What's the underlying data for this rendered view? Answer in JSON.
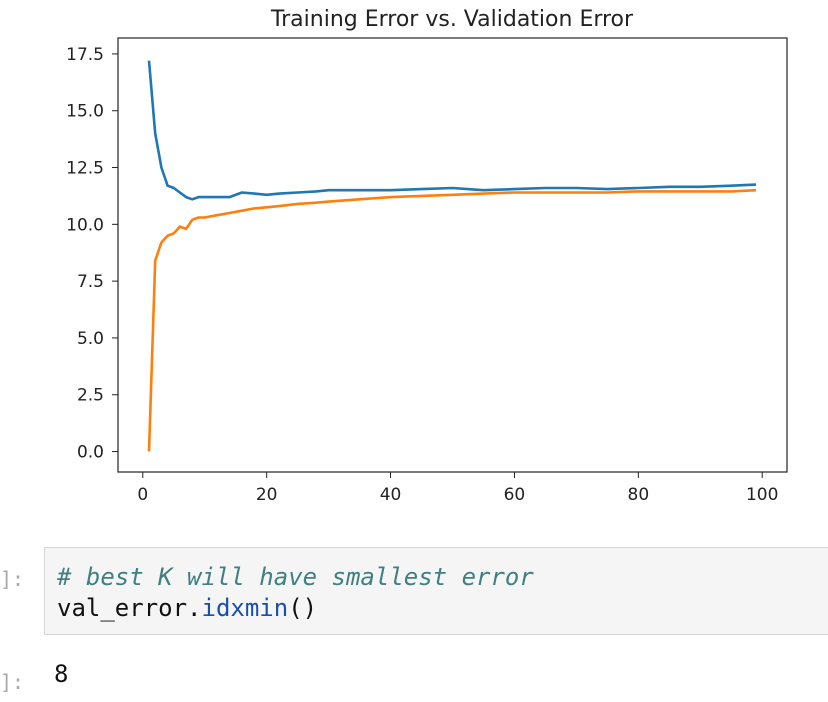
{
  "chart_data": {
    "type": "line",
    "title": "Training Error vs. Validation Error",
    "xlabel": "",
    "ylabel": "",
    "xlim": [
      -4,
      104
    ],
    "ylim": [
      -0.9,
      18.2
    ],
    "xticks": [
      0,
      20,
      40,
      60,
      80,
      100
    ],
    "xtick_labels": [
      "0",
      "20",
      "40",
      "60",
      "80",
      "100"
    ],
    "yticks": [
      0.0,
      2.5,
      5.0,
      7.5,
      10.0,
      12.5,
      15.0,
      17.5
    ],
    "ytick_labels": [
      "0.0",
      "2.5",
      "5.0",
      "7.5",
      "10.0",
      "12.5",
      "15.0",
      "17.5"
    ],
    "grid": false,
    "series": [
      {
        "color": "#1f77b4",
        "x": [
          1,
          2,
          3,
          4,
          5,
          6,
          7,
          8,
          9,
          10,
          12,
          14,
          16,
          18,
          20,
          22,
          25,
          28,
          30,
          35,
          40,
          45,
          50,
          55,
          60,
          65,
          70,
          75,
          80,
          85,
          90,
          95,
          99
        ],
        "y": [
          17.2,
          14.0,
          12.5,
          11.7,
          11.6,
          11.4,
          11.2,
          11.1,
          11.2,
          11.2,
          11.2,
          11.2,
          11.4,
          11.35,
          11.3,
          11.35,
          11.4,
          11.45,
          11.5,
          11.5,
          11.5,
          11.55,
          11.6,
          11.5,
          11.55,
          11.6,
          11.6,
          11.55,
          11.6,
          11.65,
          11.65,
          11.7,
          11.75
        ]
      },
      {
        "color": "#ff7f0e",
        "x": [
          1,
          2,
          3,
          4,
          5,
          6,
          7,
          8,
          9,
          10,
          12,
          14,
          16,
          18,
          20,
          22,
          25,
          28,
          30,
          35,
          40,
          45,
          50,
          55,
          60,
          65,
          70,
          75,
          80,
          85,
          90,
          95,
          99
        ],
        "y": [
          0.0,
          8.4,
          9.2,
          9.5,
          9.6,
          9.9,
          9.8,
          10.2,
          10.3,
          10.3,
          10.4,
          10.5,
          10.6,
          10.7,
          10.75,
          10.8,
          10.9,
          10.95,
          11.0,
          11.1,
          11.2,
          11.25,
          11.3,
          11.35,
          11.4,
          11.4,
          11.4,
          11.4,
          11.45,
          11.45,
          11.45,
          11.45,
          11.5
        ]
      }
    ]
  },
  "cells": {
    "input_prompt": "]:",
    "code_comment": "# best K will have smallest error",
    "code_object": "val_error.",
    "code_method": "idxmin",
    "code_parens": "()",
    "output_prompt": "]:",
    "output_value": "8"
  }
}
